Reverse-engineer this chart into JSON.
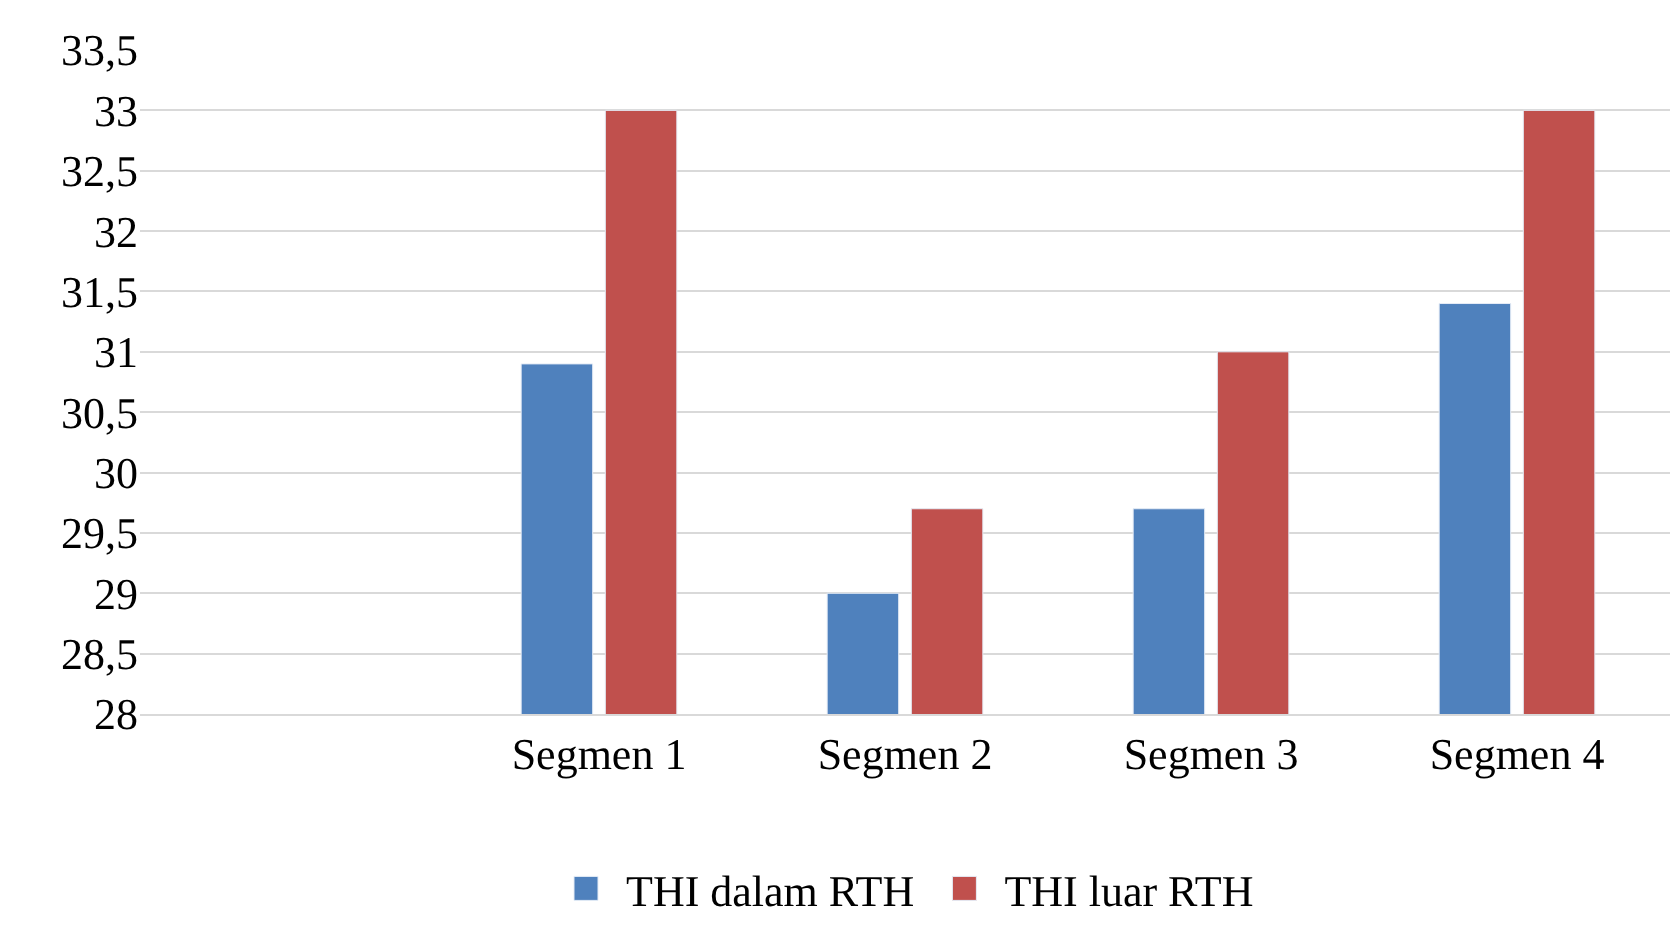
{
  "chart_data": {
    "type": "bar",
    "categories": [
      null,
      "Segmen 1",
      "Segmen 2",
      "Segmen 3",
      "Segmen 4"
    ],
    "series": [
      {
        "name": "THI dalam RTH",
        "color": "#4f81bd",
        "values": [
          null,
          30.9,
          29.0,
          29.7,
          31.4
        ]
      },
      {
        "name": "THI luar RTH",
        "color": "#c0504d",
        "values": [
          null,
          33.0,
          29.7,
          31.0,
          33.0
        ]
      }
    ],
    "ylim": [
      28,
      33.5
    ],
    "yticks": [
      28,
      {
        "value": 28.5,
        "label": "28,5"
      },
      29,
      {
        "value": 29.5,
        "label": "29,5"
      },
      30,
      {
        "value": 30.5,
        "label": "30,5"
      },
      31,
      {
        "value": 31.5,
        "label": "31,5"
      },
      32,
      {
        "value": 32.5,
        "label": "32,5"
      },
      33,
      {
        "value": 33.5,
        "label": "33,5"
      }
    ],
    "grid": "y",
    "legend": "bottom"
  }
}
